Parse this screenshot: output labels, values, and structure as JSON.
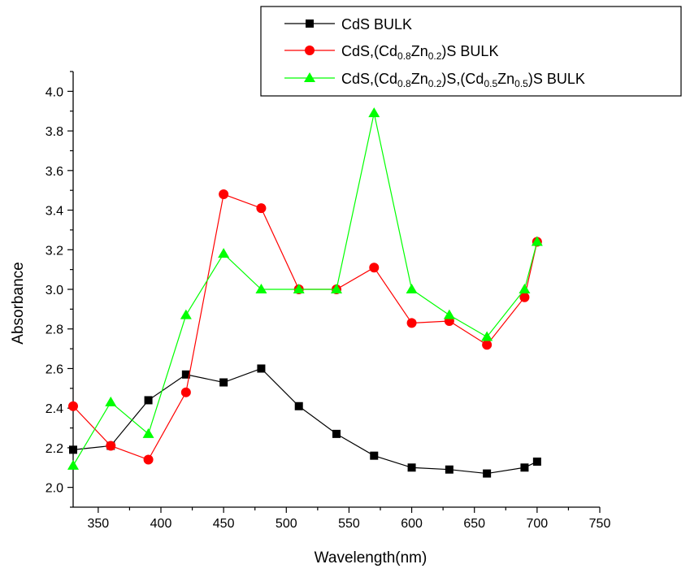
{
  "chart_data": {
    "type": "line",
    "title": "",
    "xlabel": "Wavelength(nm)",
    "ylabel": "Absorbance",
    "xlim": [
      330,
      750
    ],
    "ylim": [
      1.9,
      4.1
    ],
    "xticks": [
      350,
      400,
      450,
      500,
      550,
      600,
      650,
      700,
      750
    ],
    "yticks": [
      2.0,
      2.2,
      2.4,
      2.6,
      2.8,
      3.0,
      3.2,
      3.4,
      3.6,
      3.8,
      4.0
    ],
    "grid": false,
    "legend_position": "top-right",
    "series": [
      {
        "name": "CdS BULK",
        "legend_parts": [
          [
            "CdS BULK",
            "n"
          ]
        ],
        "color": "#000000",
        "marker": "square",
        "x": [
          330,
          360,
          390,
          420,
          450,
          480,
          510,
          540,
          570,
          600,
          630,
          660,
          690,
          700
        ],
        "y": [
          2.19,
          2.21,
          2.44,
          2.57,
          2.53,
          2.6,
          2.41,
          2.27,
          2.16,
          2.1,
          2.09,
          2.07,
          2.1,
          2.13
        ]
      },
      {
        "name": "CdS,(Cd0.8Zn0.2)S BULK",
        "legend_parts": [
          [
            "CdS,(Cd",
            "n"
          ],
          [
            "0.8",
            "s"
          ],
          [
            "Zn",
            "n"
          ],
          [
            "0.2",
            "s"
          ],
          [
            ")S BULK",
            "n"
          ]
        ],
        "color": "#ff0000",
        "marker": "circle",
        "x": [
          330,
          360,
          390,
          420,
          450,
          480,
          510,
          540,
          570,
          600,
          630,
          660,
          690,
          700
        ],
        "y": [
          2.41,
          2.21,
          2.14,
          2.48,
          3.48,
          3.41,
          3.0,
          3.0,
          3.11,
          2.83,
          2.84,
          2.72,
          2.96,
          3.24
        ]
      },
      {
        "name": "CdS,(Cd0.8Zn0.2)S,(Cd0.5Zn0.5)S BULK",
        "legend_parts": [
          [
            "CdS,(Cd",
            "n"
          ],
          [
            "0.8",
            "s"
          ],
          [
            "Zn",
            "n"
          ],
          [
            "0.2",
            "s"
          ],
          [
            ")S,(Cd",
            "n"
          ],
          [
            "0.5",
            "s"
          ],
          [
            "Zn",
            "n"
          ],
          [
            "0.5",
            "s"
          ],
          [
            ")S BULK",
            "n"
          ]
        ],
        "color": "#00ff00",
        "marker": "triangle",
        "x": [
          330,
          360,
          390,
          420,
          450,
          480,
          510,
          540,
          570,
          600,
          630,
          660,
          690,
          700
        ],
        "y": [
          2.11,
          2.43,
          2.27,
          2.87,
          3.18,
          3.0,
          3.0,
          3.0,
          3.89,
          3.0,
          2.87,
          2.76,
          3.0,
          3.24
        ]
      }
    ]
  }
}
